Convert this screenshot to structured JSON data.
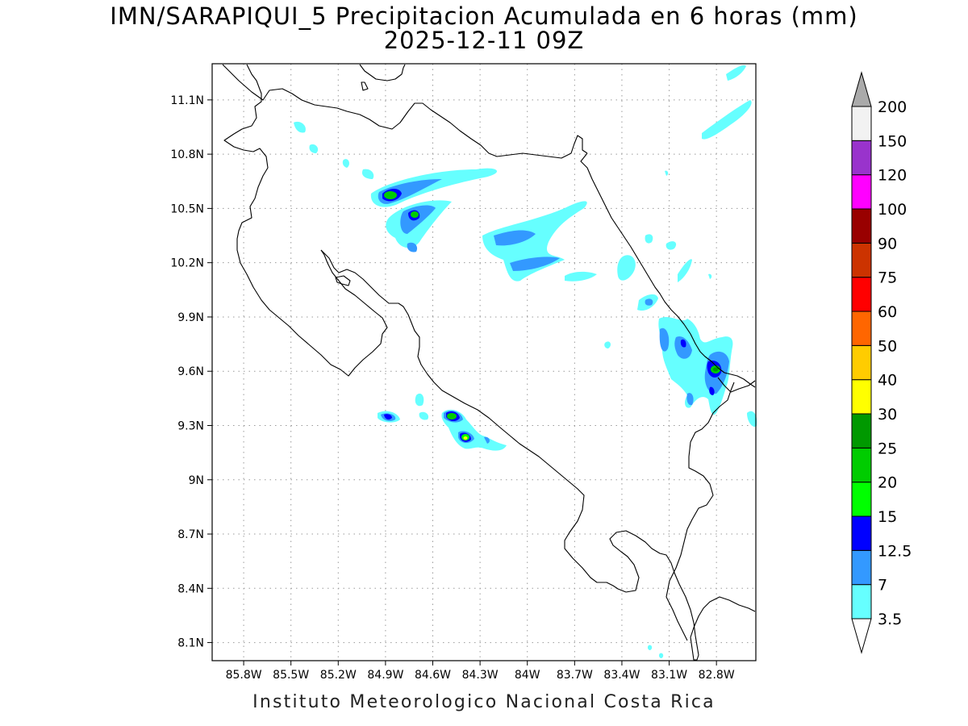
{
  "header": {
    "title_line1": "IMN/SARAPIQUI_5 Precipitacion Acumulada en 6 horas (mm)",
    "title_line2": "2025-12-11 09Z"
  },
  "footer": {
    "credit": "Instituto Meteorologico Nacional Costa Rica"
  },
  "map": {
    "lon_range": [
      -86.0,
      -82.55
    ],
    "lat_range": [
      8.0,
      11.3
    ],
    "lon_ticks": [
      {
        "value": -85.8,
        "label": "85.8W"
      },
      {
        "value": -85.5,
        "label": "85.5W"
      },
      {
        "value": -85.2,
        "label": "85.2W"
      },
      {
        "value": -84.9,
        "label": "84.9W"
      },
      {
        "value": -84.6,
        "label": "84.6W"
      },
      {
        "value": -84.3,
        "label": "84.3W"
      },
      {
        "value": -84.0,
        "label": "84W"
      },
      {
        "value": -83.7,
        "label": "83.7W"
      },
      {
        "value": -83.4,
        "label": "83.4W"
      },
      {
        "value": -83.1,
        "label": "83.1W"
      },
      {
        "value": -82.8,
        "label": "82.8W"
      }
    ],
    "lat_ticks": [
      {
        "value": 8.1,
        "label": "8.1N"
      },
      {
        "value": 8.4,
        "label": "8.4N"
      },
      {
        "value": 8.7,
        "label": "8.7N"
      },
      {
        "value": 9.0,
        "label": "9N"
      },
      {
        "value": 9.3,
        "label": "9.3N"
      },
      {
        "value": 9.6,
        "label": "9.6N"
      },
      {
        "value": 9.9,
        "label": "9.9N"
      },
      {
        "value": 10.2,
        "label": "10.2N"
      },
      {
        "value": 10.5,
        "label": "10.5N"
      },
      {
        "value": 10.8,
        "label": "10.8N"
      },
      {
        "value": 11.1,
        "label": "11.1N"
      }
    ],
    "grid": "dotted"
  },
  "legend": {
    "unit": "mm",
    "levels": [
      {
        "label": "3.5",
        "color": "#66ffff"
      },
      {
        "label": "7",
        "color": "#3399ff"
      },
      {
        "label": "12.5",
        "color": "#0000ff"
      },
      {
        "label": "15",
        "color": "#00ff00"
      },
      {
        "label": "20",
        "color": "#00cc00"
      },
      {
        "label": "25",
        "color": "#009900"
      },
      {
        "label": "30",
        "color": "#ffff00"
      },
      {
        "label": "40",
        "color": "#ffcc00"
      },
      {
        "label": "50",
        "color": "#ff6600"
      },
      {
        "label": "60",
        "color": "#ff0000"
      },
      {
        "label": "75",
        "color": "#cc3300"
      },
      {
        "label": "90",
        "color": "#990000"
      },
      {
        "label": "100",
        "color": "#ff00ff"
      },
      {
        "label": "120",
        "color": "#9933cc"
      },
      {
        "label": "150",
        "color": "#f2f2f2"
      },
      {
        "label": "200",
        "color": "#aaaaaa"
      }
    ],
    "below_min_color": "#ffffff"
  }
}
